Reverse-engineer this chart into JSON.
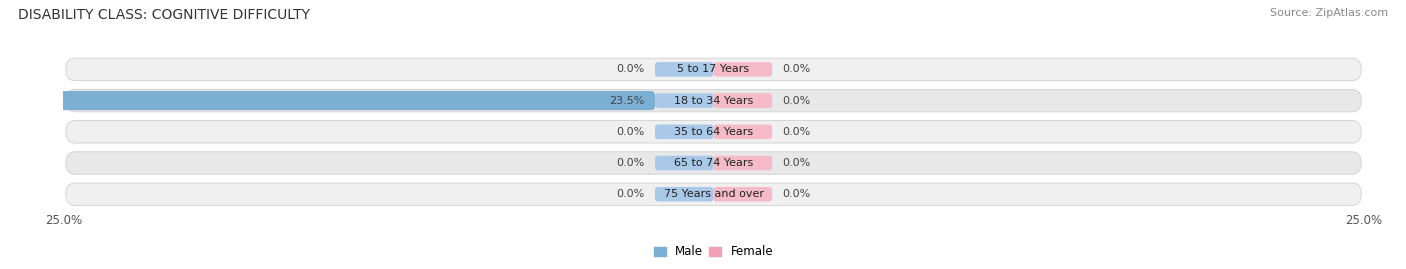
{
  "title": "DISABILITY CLASS: COGNITIVE DIFFICULTY",
  "source": "Source: ZipAtlas.com",
  "categories": [
    "5 to 17 Years",
    "18 to 34 Years",
    "35 to 64 Years",
    "65 to 74 Years",
    "75 Years and over"
  ],
  "male_values": [
    0.0,
    23.5,
    0.0,
    0.0,
    0.0
  ],
  "female_values": [
    0.0,
    0.0,
    0.0,
    0.0,
    0.0
  ],
  "xlim_left": -25.0,
  "xlim_right": 25.0,
  "male_color": "#7bafd4",
  "female_color": "#f0a0b8",
  "row_color_a": "#f0f0f0",
  "row_color_b": "#e8e8e8",
  "center_male_color": "#aac8e8",
  "center_female_color": "#f5bcc8",
  "title_fontsize": 10,
  "source_fontsize": 8,
  "label_fontsize": 8,
  "value_fontsize": 8,
  "tick_fontsize": 8.5,
  "legend_fontsize": 8.5,
  "background_color": "#ffffff",
  "bar_height": 0.72,
  "center_bar_width": 4.5,
  "row_edge_color": "#d0d0d0"
}
